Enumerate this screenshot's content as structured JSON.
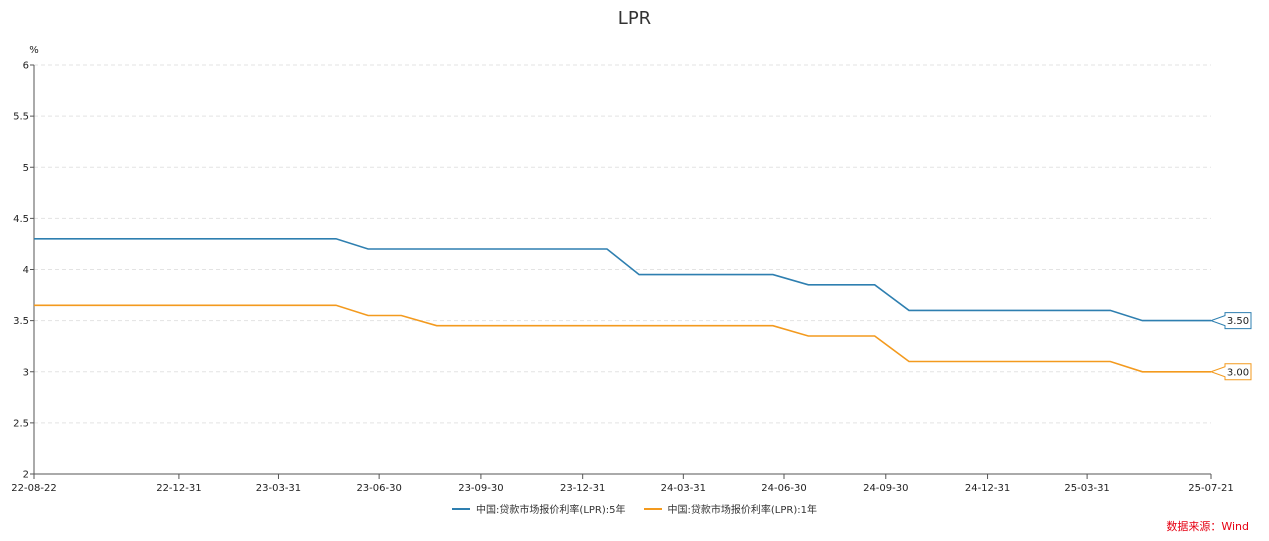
{
  "chart_data": {
    "type": "line",
    "title": "LPR",
    "ylabel": "%",
    "ylim": [
      2,
      6
    ],
    "yticks": [
      "6",
      "5.5",
      "5",
      "4.5",
      "4",
      "3.5",
      "3",
      "2.5",
      "2"
    ],
    "xlim": [
      "2022-08-22",
      "2025-07-21"
    ],
    "xticks": [
      {
        "date": "2022-08-22",
        "label": "22-08-22"
      },
      {
        "date": "2022-12-31",
        "label": "22-12-31"
      },
      {
        "date": "2023-03-31",
        "label": "23-03-31"
      },
      {
        "date": "2023-06-30",
        "label": "23-06-30"
      },
      {
        "date": "2023-09-30",
        "label": "23-09-30"
      },
      {
        "date": "2023-12-31",
        "label": "23-12-31"
      },
      {
        "date": "2024-03-31",
        "label": "24-03-31"
      },
      {
        "date": "2024-06-30",
        "label": "24-06-30"
      },
      {
        "date": "2024-09-30",
        "label": "24-09-30"
      },
      {
        "date": "2024-12-31",
        "label": "24-12-31"
      },
      {
        "date": "2025-03-31",
        "label": "25-03-31"
      },
      {
        "date": "2025-07-21",
        "label": "25-07-21"
      }
    ],
    "grid": true,
    "legend_position": "bottom",
    "series": [
      {
        "name": "中国:贷款市场报价利率(LPR):5年",
        "color": "#2e7fb0",
        "end_label": "3.50",
        "points": [
          [
            "2022-08-22",
            4.3
          ],
          [
            "2023-05-22",
            4.3
          ],
          [
            "2023-06-20",
            4.2
          ],
          [
            "2024-01-22",
            4.2
          ],
          [
            "2024-02-20",
            3.95
          ],
          [
            "2024-06-20",
            3.95
          ],
          [
            "2024-07-22",
            3.85
          ],
          [
            "2024-09-20",
            3.85
          ],
          [
            "2024-10-21",
            3.6
          ],
          [
            "2025-04-21",
            3.6
          ],
          [
            "2025-05-20",
            3.5
          ],
          [
            "2025-07-21",
            3.5
          ]
        ]
      },
      {
        "name": "中国:贷款市场报价利率(LPR):1年",
        "color": "#f39a1e",
        "end_label": "3.00",
        "points": [
          [
            "2022-08-22",
            3.65
          ],
          [
            "2023-05-22",
            3.65
          ],
          [
            "2023-06-20",
            3.55
          ],
          [
            "2023-07-20",
            3.55
          ],
          [
            "2023-08-21",
            3.45
          ],
          [
            "2024-06-20",
            3.45
          ],
          [
            "2024-07-22",
            3.35
          ],
          [
            "2024-09-20",
            3.35
          ],
          [
            "2024-10-21",
            3.1
          ],
          [
            "2025-04-21",
            3.1
          ],
          [
            "2025-05-20",
            3.0
          ],
          [
            "2025-07-21",
            3.0
          ]
        ]
      }
    ]
  },
  "source": "数据来源：Wind"
}
